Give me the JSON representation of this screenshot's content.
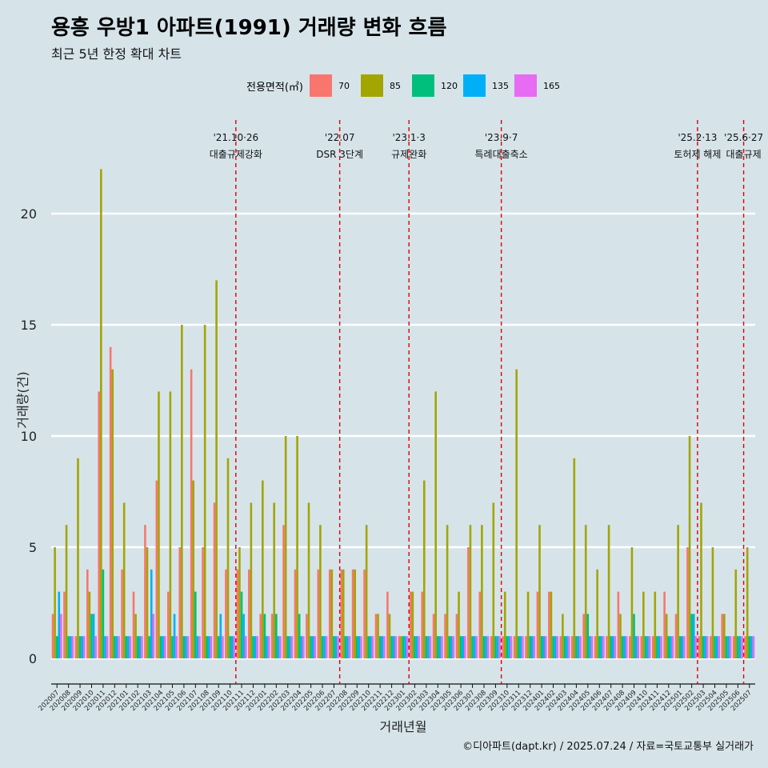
{
  "header": {
    "title": "용흥 우방1 아파트(1991) 거래량 변화 흐름",
    "subtitle": "최근 5년 한정 확대 차트"
  },
  "caption": "©디아파트(dapt.kr) / 2025.07.24 / 자료=국토교통부 실거래가",
  "legend": {
    "title": "전용면적(㎡)",
    "items": [
      {
        "label": "70",
        "color": "#F8766D"
      },
      {
        "label": "85",
        "color": "#A3A500"
      },
      {
        "label": "120",
        "color": "#00BF7D"
      },
      {
        "label": "135",
        "color": "#00B0F6"
      },
      {
        "label": "165",
        "color": "#E76BF3"
      }
    ]
  },
  "chart_data": {
    "type": "bar",
    "xlabel": "거래년월",
    "ylabel": "거래량(건)",
    "ylim": [
      0,
      23
    ],
    "yticks": [
      0,
      5,
      10,
      15,
      20
    ],
    "grid": true,
    "categories": [
      "202007",
      "202008",
      "202009",
      "202010",
      "202011",
      "202012",
      "202101",
      "202102",
      "202103",
      "202104",
      "202105",
      "202106",
      "202107",
      "202108",
      "202109",
      "202110",
      "202111",
      "202112",
      "202201",
      "202202",
      "202203",
      "202204",
      "202205",
      "202206",
      "202207",
      "202208",
      "202209",
      "202210",
      "202211",
      "202212",
      "202301",
      "202302",
      "202303",
      "202304",
      "202305",
      "202306",
      "202307",
      "202308",
      "202309",
      "202310",
      "202311",
      "202312",
      "202401",
      "202402",
      "202403",
      "202404",
      "202405",
      "202406",
      "202407",
      "202408",
      "202409",
      "202410",
      "202411",
      "202412",
      "202501",
      "202502",
      "202503",
      "202504",
      "202505",
      "202506",
      "202507"
    ],
    "series": [
      {
        "name": "70",
        "color": "#F8766D",
        "values": [
          2,
          3,
          1,
          4,
          12,
          14,
          4,
          3,
          6,
          8,
          3,
          5,
          13,
          5,
          7,
          4,
          4,
          4,
          2,
          2,
          6,
          4,
          2,
          4,
          4,
          4,
          4,
          4,
          2,
          3,
          1,
          3,
          3,
          2,
          2,
          2,
          5,
          3,
          1,
          1,
          1,
          1,
          3,
          3,
          1,
          1,
          2,
          1,
          1,
          3,
          1,
          1,
          1,
          3,
          2,
          5,
          1,
          1,
          2,
          1,
          1
        ]
      },
      {
        "name": "85",
        "color": "#A3A500",
        "values": [
          5,
          6,
          9,
          3,
          22,
          13,
          7,
          2,
          5,
          12,
          12,
          15,
          8,
          15,
          17,
          9,
          5,
          7,
          8,
          7,
          10,
          10,
          7,
          6,
          4,
          4,
          4,
          6,
          2,
          2,
          1,
          3,
          8,
          12,
          6,
          3,
          6,
          6,
          7,
          3,
          13,
          3,
          6,
          3,
          2,
          9,
          6,
          4,
          6,
          2,
          5,
          3,
          3,
          2,
          6,
          10,
          7,
          5,
          2,
          4,
          5
        ]
      },
      {
        "name": "120",
        "color": "#00BF7D",
        "values": [
          1,
          1,
          1,
          2,
          4,
          1,
          1,
          1,
          1,
          1,
          1,
          1,
          3,
          1,
          1,
          1,
          3,
          1,
          2,
          2,
          1,
          2,
          1,
          1,
          1,
          1,
          1,
          1,
          1,
          1,
          1,
          1,
          1,
          1,
          1,
          1,
          1,
          1,
          1,
          1,
          1,
          1,
          1,
          1,
          1,
          1,
          2,
          1,
          1,
          1,
          2,
          1,
          1,
          1,
          1,
          2,
          1,
          1,
          1,
          1,
          1
        ]
      },
      {
        "name": "135",
        "color": "#00B0F6",
        "values": [
          3,
          1,
          1,
          2,
          1,
          1,
          1,
          1,
          4,
          1,
          2,
          1,
          1,
          1,
          2,
          1,
          2,
          1,
          1,
          1,
          1,
          1,
          1,
          1,
          1,
          1,
          1,
          1,
          1,
          1,
          1,
          1,
          1,
          1,
          1,
          1,
          1,
          1,
          1,
          1,
          1,
          1,
          1,
          1,
          1,
          1,
          1,
          1,
          1,
          1,
          1,
          1,
          1,
          1,
          1,
          2,
          1,
          1,
          1,
          1,
          1
        ]
      },
      {
        "name": "165",
        "color": "#E76BF3",
        "values": [
          2,
          1,
          1,
          1,
          1,
          1,
          1,
          1,
          2,
          1,
          1,
          1,
          1,
          1,
          1,
          1,
          1,
          1,
          1,
          1,
          1,
          1,
          1,
          1,
          1,
          1,
          1,
          1,
          1,
          1,
          1,
          1,
          1,
          1,
          1,
          1,
          1,
          1,
          1,
          1,
          1,
          1,
          1,
          1,
          1,
          1,
          1,
          1,
          1,
          1,
          1,
          1,
          1,
          1,
          1,
          1,
          1,
          1,
          1,
          1,
          1
        ]
      }
    ],
    "events": [
      {
        "date": "'21.10·26",
        "label": "대출규제강화",
        "after": "202110"
      },
      {
        "date": "'22.07",
        "label": "DSR 3단계",
        "after": "202207"
      },
      {
        "date": "'23.1·3",
        "label": "규제완화",
        "after": "202301"
      },
      {
        "date": "'23.9·7",
        "label": "특례대출축소",
        "after": "202309"
      },
      {
        "date": "'25.2·13",
        "label": "토허제 해제",
        "after": "202502"
      },
      {
        "date": "'25.6·27",
        "label": "대출규제",
        "after": "202506"
      }
    ]
  }
}
